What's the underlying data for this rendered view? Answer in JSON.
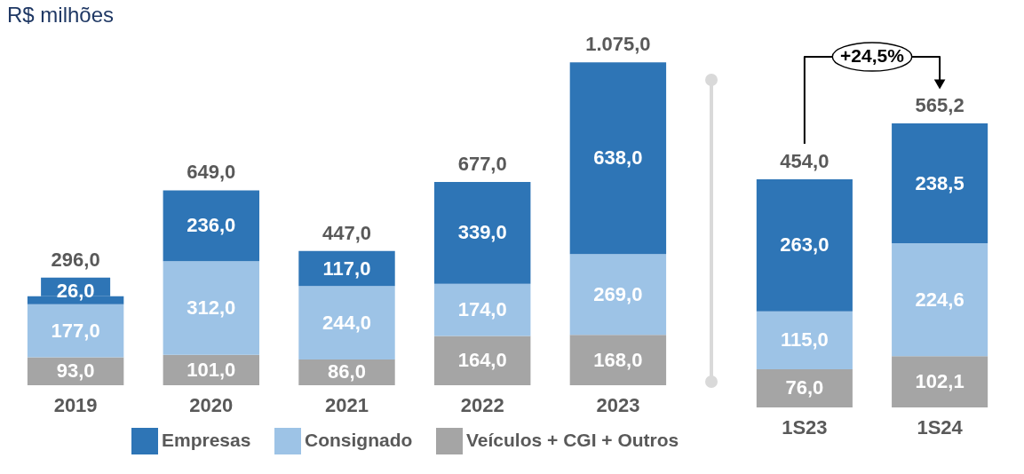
{
  "chart_data": [
    {
      "type": "bar",
      "title": "R$ milhões",
      "categories": [
        "2019",
        "2020",
        "2021",
        "2022",
        "2023"
      ],
      "stacked": true,
      "legend": "bottom",
      "series": [
        {
          "name": "Veículos + CGI + Outros",
          "color": "#a5a5a5",
          "values": [
            93.0,
            101.0,
            86.0,
            164.0,
            168.0
          ],
          "value_labels": [
            "93,0",
            "101,0",
            "86,0",
            "164,0",
            "168,0"
          ]
        },
        {
          "name": "Consignado",
          "color": "#9dc3e6",
          "values": [
            177.0,
            312.0,
            244.0,
            174.0,
            269.0
          ],
          "value_labels": [
            "177,0",
            "312,0",
            "244,0",
            "174,0",
            "269,0"
          ]
        },
        {
          "name": "Empresas",
          "color": "#2e75b6",
          "values": [
            26.0,
            236.0,
            117.0,
            339.0,
            638.0
          ],
          "value_labels": [
            "26,0",
            "236,0",
            "117,0",
            "339,0",
            "638,0"
          ]
        }
      ],
      "totals": [
        "296,0",
        "649,0",
        "447,0",
        "677,0",
        "1.075,0"
      ]
    },
    {
      "type": "bar",
      "categories": [
        "1S23",
        "1S24"
      ],
      "stacked": true,
      "series": [
        {
          "color": "#a5a5a5",
          "values": [
            76.0,
            102.1
          ],
          "value_labels": [
            "76,0",
            "102,1"
          ]
        },
        {
          "color": "#9dc3e6",
          "values": [
            115.0,
            224.6
          ],
          "value_labels": [
            "115,0",
            "224,6"
          ]
        },
        {
          "color": "#2e75b6",
          "values": [
            263.0,
            238.5
          ],
          "value_labels": [
            "263,0",
            "238,5"
          ]
        }
      ],
      "totals": [
        "454,0",
        "565,2"
      ],
      "annotations": [
        "+24,5%"
      ]
    }
  ]
}
